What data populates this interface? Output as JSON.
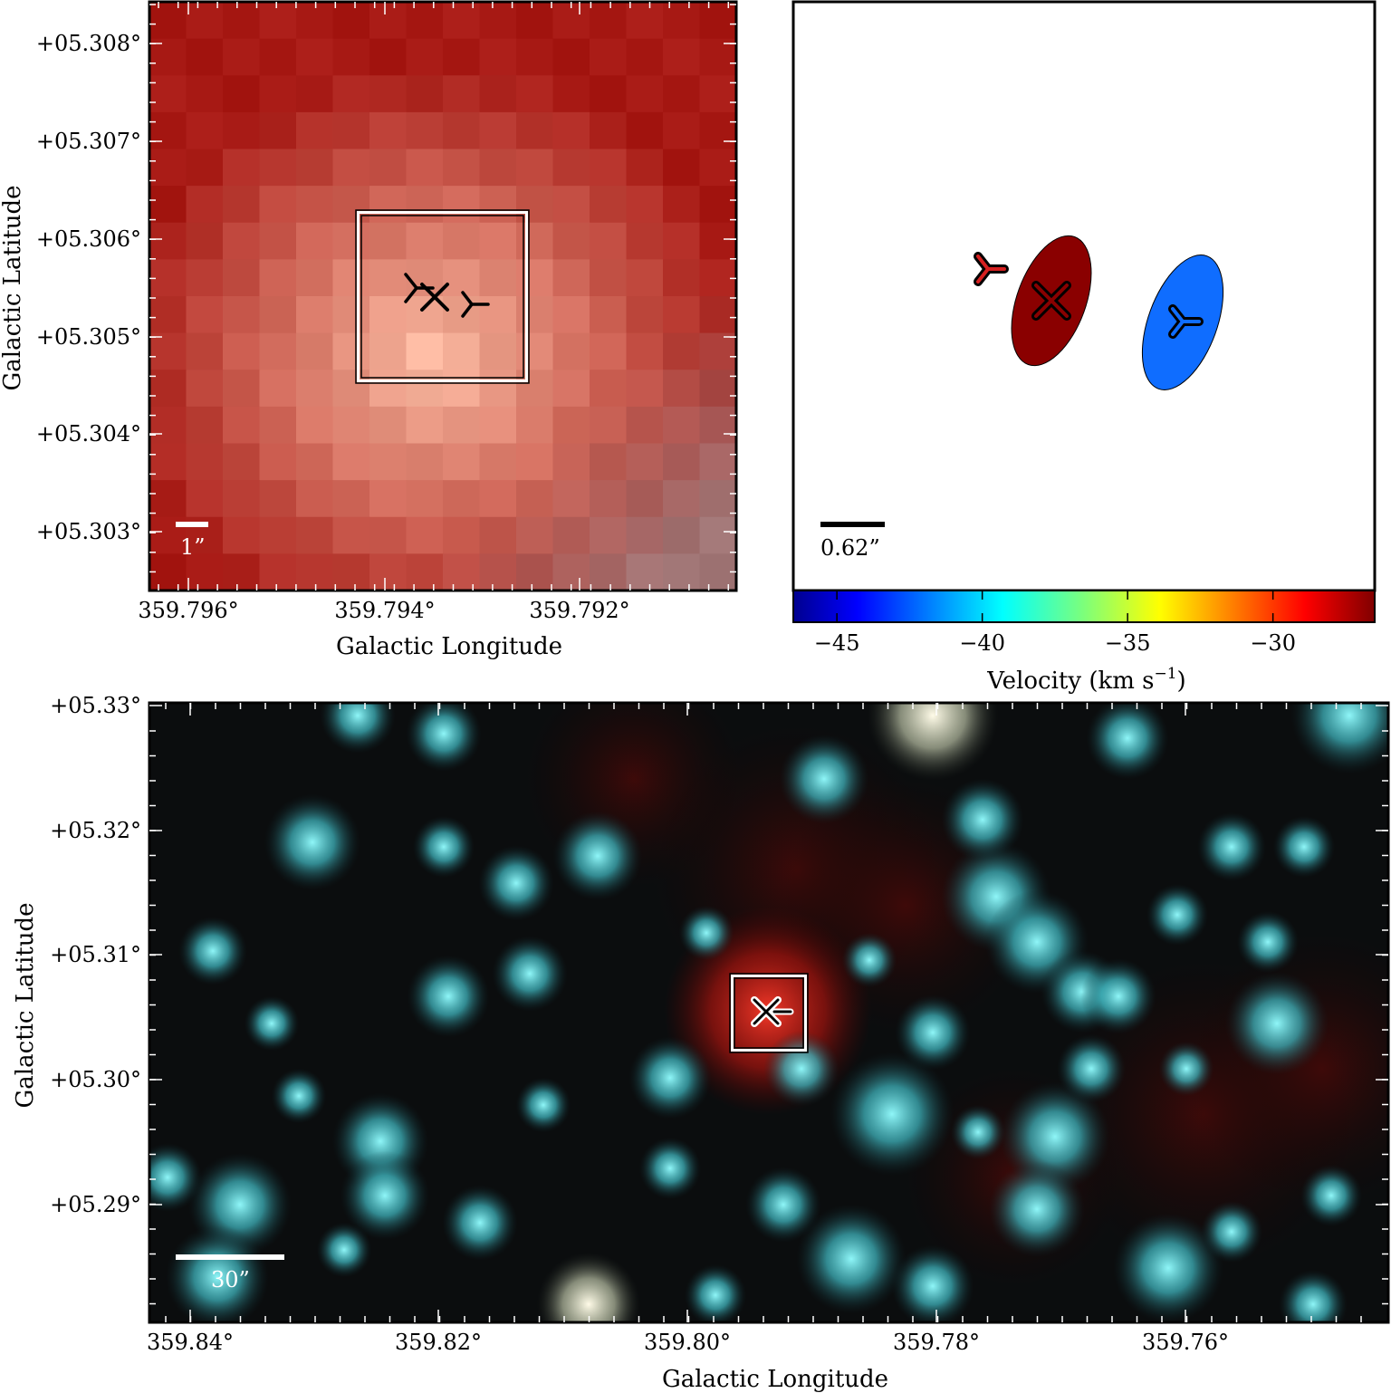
{
  "colors": {
    "red_peak": "#fbb9a2",
    "red_edge": "#b01c14",
    "velocity_red": "#8a0000",
    "velocity_blue": "#0f6dff",
    "cyan_star": "#5fd8dc",
    "background_dark": "#0b0d0e"
  },
  "icons": [
    "x-marker-icon",
    "y-marker-icon",
    "inverted-y-marker-icon"
  ],
  "top_left_panel": {
    "x_axis_label": "Galactic Longitude",
    "y_axis_label": "Galactic Latitude",
    "x_ticks": [
      "359.796°",
      "359.794°",
      "359.792°"
    ],
    "y_ticks": [
      "+05.308°",
      "+05.307°",
      "+05.306°",
      "+05.305°",
      "+05.304°",
      "+05.303°"
    ],
    "scale_bar_label": "1”"
  },
  "top_right_panel": {
    "scale_bar_label": "0.62”",
    "colorbar": {
      "label_text": "Velocity (km s",
      "label_exponent": "−1",
      "label_close": ")",
      "ticks": [
        "−45",
        "−40",
        "−35",
        "−30"
      ],
      "colormap": "jet",
      "range": [
        -46.5,
        -26.5
      ]
    },
    "sources": [
      {
        "marker": "x",
        "velocity_color": "#8a0000"
      },
      {
        "marker": "y",
        "velocity_color": "#0f6dff"
      },
      {
        "marker": "inverted-y",
        "velocity_color": "#d62020"
      }
    ]
  },
  "bottom_panel": {
    "x_axis_label": "Galactic Longitude",
    "y_axis_label": "Galactic Latitude",
    "x_ticks": [
      "359.84°",
      "359.82°",
      "359.80°",
      "359.78°",
      "359.76°"
    ],
    "y_ticks": [
      "+05.33°",
      "+05.32°",
      "+05.31°",
      "+05.30°",
      "+05.29°"
    ],
    "scale_bar_label": "30”"
  }
}
